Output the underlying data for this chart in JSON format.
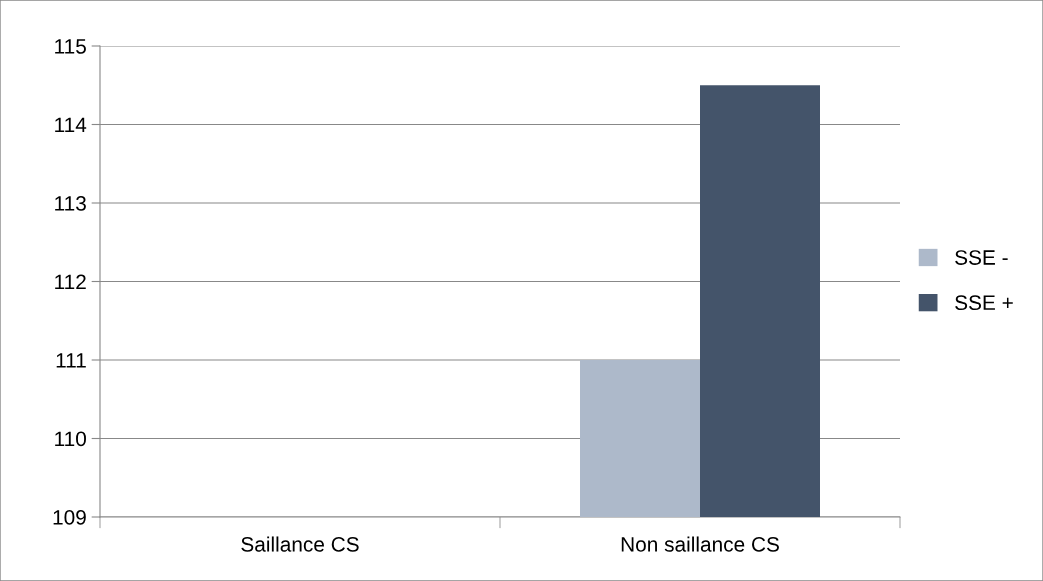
{
  "chart_data": {
    "type": "bar",
    "categories": [
      "Saillance CS",
      "Non saillance CS"
    ],
    "series": [
      {
        "name": "SSE -",
        "color": "#adb9ca",
        "values": [
          null,
          111
        ]
      },
      {
        "name": "SSE +",
        "color": "#44546a",
        "values": [
          null,
          114.5
        ]
      }
    ],
    "ylim": [
      109,
      115
    ],
    "yticks": [
      109,
      110,
      111,
      112,
      113,
      114,
      115
    ],
    "grid": "y",
    "legend": "right"
  }
}
